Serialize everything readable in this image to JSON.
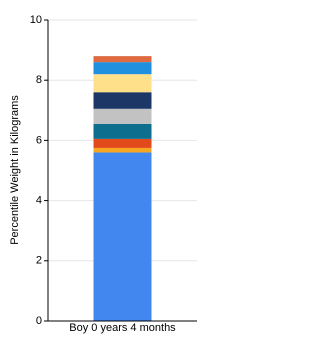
{
  "chart_data": {
    "type": "stacked_bar",
    "y_label": "Percentile Weight in Kilograms",
    "categories": [
      "Boy 0 years 4 months"
    ],
    "series": [
      {
        "color": "#4287f0",
        "values": [
          5.6
        ]
      },
      {
        "color": "#f5a623",
        "values": [
          0.15
        ]
      },
      {
        "color": "#e2491b",
        "values": [
          0.3
        ]
      },
      {
        "color": "#0e6e8e",
        "values": [
          0.5
        ]
      },
      {
        "color": "#c2c2c2",
        "values": [
          0.5
        ]
      },
      {
        "color": "#1c3766",
        "values": [
          0.55
        ]
      },
      {
        "color": "#fee08a",
        "values": [
          0.6
        ]
      },
      {
        "color": "#1f8fdf",
        "values": [
          0.4
        ]
      },
      {
        "color": "#df6a3f",
        "values": [
          0.2
        ]
      }
    ],
    "ylim": [
      0,
      10
    ],
    "yticks": [
      0,
      2,
      4,
      6,
      8,
      10
    ],
    "grid": true
  }
}
